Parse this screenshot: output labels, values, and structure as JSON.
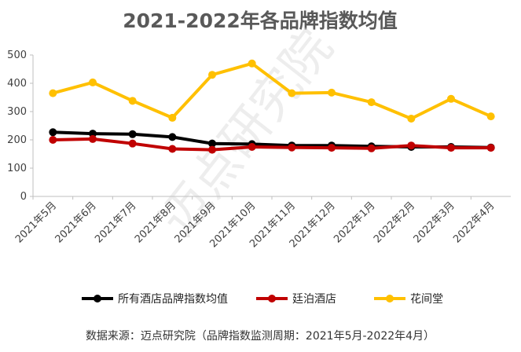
{
  "chart_data": {
    "type": "line",
    "title": "2021-2022年各品牌指数均值",
    "categories": [
      "2021年5月",
      "2021年6月",
      "2021年7月",
      "2021年8月",
      "2021年9月",
      "2021年10月",
      "2021年11月",
      "2021年12月",
      "2022年1月",
      "2022年2月",
      "2022年3月",
      "2022年4月"
    ],
    "ylim": [
      0,
      500
    ],
    "yticks": [
      "0",
      "100",
      "200",
      "300",
      "400",
      "500"
    ],
    "grid": false,
    "legend_position": "bottom",
    "series": [
      {
        "name": "所有酒店品牌指数均值",
        "color": "#000000",
        "values": [
          227,
          222,
          220,
          210,
          187,
          185,
          180,
          180,
          177,
          175,
          175,
          173
        ]
      },
      {
        "name": "廷泊酒店",
        "color": "#c00000",
        "values": [
          200,
          203,
          187,
          168,
          165,
          175,
          173,
          172,
          170,
          180,
          172,
          172
        ]
      },
      {
        "name": "花间堂",
        "color": "#ffc000",
        "values": [
          365,
          403,
          338,
          278,
          430,
          470,
          365,
          367,
          333,
          275,
          345,
          283
        ]
      }
    ]
  },
  "watermark": "迈点研究院",
  "source": "数据来源：迈点研究院（品牌指数监测周期：2021年5月-2022年4月）"
}
